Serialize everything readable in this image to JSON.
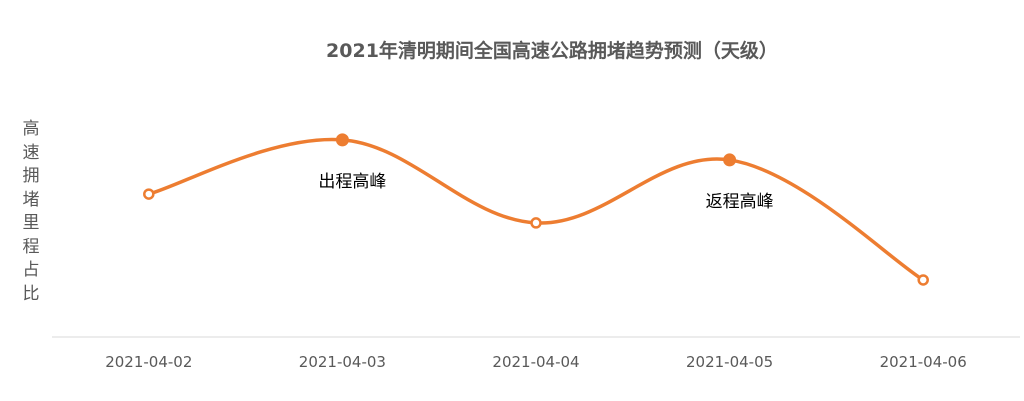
{
  "chart_data": {
    "type": "line",
    "title": "2021年清明期间全国高速公路拥堵趋势预测（天级）",
    "xlabel": "",
    "ylabel": "高速拥堵里程占比",
    "categories": [
      "2021-04-02",
      "2021-04-03",
      "2021-04-04",
      "2021-04-05",
      "2021-04-06"
    ],
    "values": [
      55.6,
      76.7,
      44.4,
      68.9,
      22.2
    ],
    "ylim": [
      0,
      100
    ],
    "smooth": true,
    "grid": false,
    "color": "#ED7D31",
    "annotations": [
      {
        "category": "2021-04-03",
        "text": "出程高峰"
      },
      {
        "category": "2021-04-05",
        "text": "返程高峰"
      }
    ],
    "highlighted_points": [
      "2021-04-03",
      "2021-04-05"
    ]
  }
}
